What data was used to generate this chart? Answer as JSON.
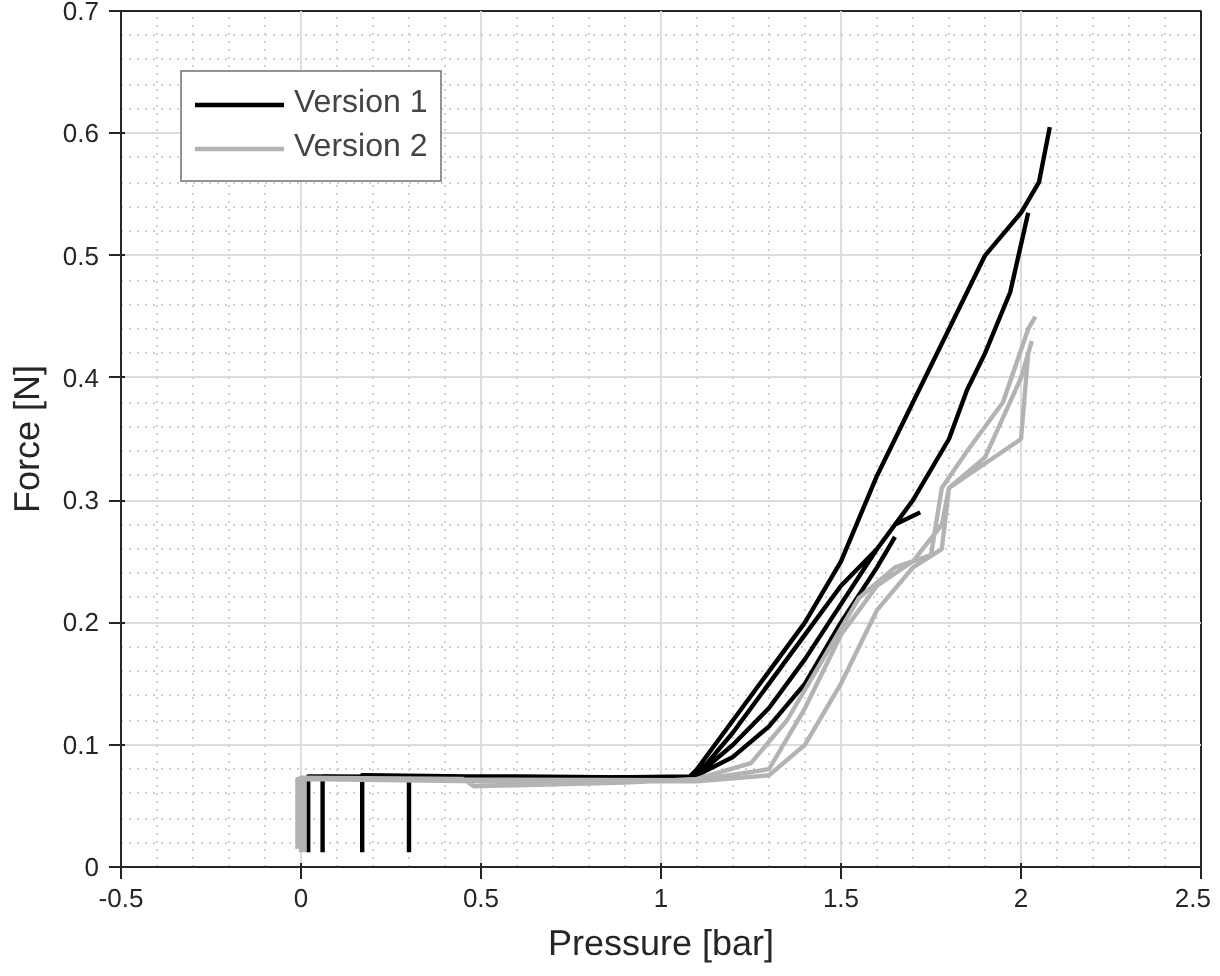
{
  "chart_data": {
    "type": "line",
    "xlabel": "Pressure [bar]",
    "ylabel": "Force [N]",
    "xlim": [
      -0.5,
      2.5
    ],
    "xticks": [
      -0.5,
      0,
      0.5,
      1,
      1.5,
      2,
      2.5
    ],
    "ylim": [
      0,
      0.7
    ],
    "yticks": [
      0,
      0.1,
      0.2,
      0.3,
      0.4,
      0.5,
      0.6,
      0.7
    ],
    "grid": true,
    "legend": "top left",
    "line_style": "solid",
    "marker": "none",
    "series": [
      {
        "name": "Version 1",
        "color": "#000000",
        "x": [
          0.3,
          0.3,
          0.6,
          1.0,
          1.08,
          1.1,
          1.2,
          1.3,
          1.4,
          1.5,
          1.6,
          1.7,
          1.8,
          1.9,
          2.0,
          2.05,
          2.08,
          null,
          0.17,
          0.17,
          0.8,
          1.08,
          1.1,
          1.2,
          1.3,
          1.4,
          1.5,
          1.6,
          1.7,
          1.8,
          1.85,
          1.9,
          1.97,
          2.02,
          null,
          0.06,
          0.06,
          1.08,
          1.1,
          1.2,
          1.3,
          1.4,
          1.5,
          1.6,
          1.65,
          1.72,
          null,
          0.02,
          0.02,
          1.05,
          1.1,
          1.2,
          1.3,
          1.4,
          1.5,
          1.6,
          1.65
        ],
        "values": [
          0.012,
          0.074,
          0.074,
          0.073,
          0.074,
          0.08,
          0.12,
          0.16,
          0.2,
          0.25,
          0.32,
          0.38,
          0.44,
          0.5,
          0.535,
          0.56,
          0.605,
          null,
          0.012,
          0.075,
          0.073,
          0.074,
          0.075,
          0.1,
          0.13,
          0.17,
          0.215,
          0.26,
          0.3,
          0.35,
          0.39,
          0.42,
          0.47,
          0.535,
          null,
          0.012,
          0.074,
          0.073,
          0.075,
          0.11,
          0.15,
          0.19,
          0.23,
          0.26,
          0.28,
          0.29,
          null,
          0.012,
          0.074,
          0.072,
          0.075,
          0.09,
          0.115,
          0.15,
          0.2,
          0.245,
          0.27
        ]
      },
      {
        "name": "Version 2",
        "color": "#b3b3b3",
        "x": [
          0.0,
          0.0,
          0.45,
          0.48,
          0.9,
          1.1,
          1.25,
          1.35,
          1.45,
          1.55,
          1.65,
          1.75,
          1.78,
          1.85,
          1.95,
          2.02,
          2.04,
          null,
          0.01,
          0.01,
          0.5,
          1.1,
          1.3,
          1.4,
          1.5,
          1.6,
          1.7,
          1.78,
          1.8,
          1.9,
          2.0,
          2.02,
          null,
          -0.01,
          -0.01,
          1.1,
          1.3,
          1.4,
          1.5,
          1.6,
          1.7,
          1.78,
          1.8,
          1.9,
          2.0,
          2.03
        ],
        "values": [
          0.012,
          0.073,
          0.072,
          0.066,
          0.069,
          0.072,
          0.085,
          0.12,
          0.17,
          0.22,
          0.245,
          0.255,
          0.31,
          0.34,
          0.38,
          0.44,
          0.45,
          null,
          0.012,
          0.072,
          0.07,
          0.07,
          0.075,
          0.1,
          0.15,
          0.21,
          0.245,
          0.26,
          0.31,
          0.33,
          0.35,
          0.42,
          null,
          0.015,
          0.072,
          0.071,
          0.08,
          0.13,
          0.19,
          0.23,
          0.25,
          0.28,
          0.31,
          0.335,
          0.4,
          0.43
        ]
      }
    ]
  }
}
